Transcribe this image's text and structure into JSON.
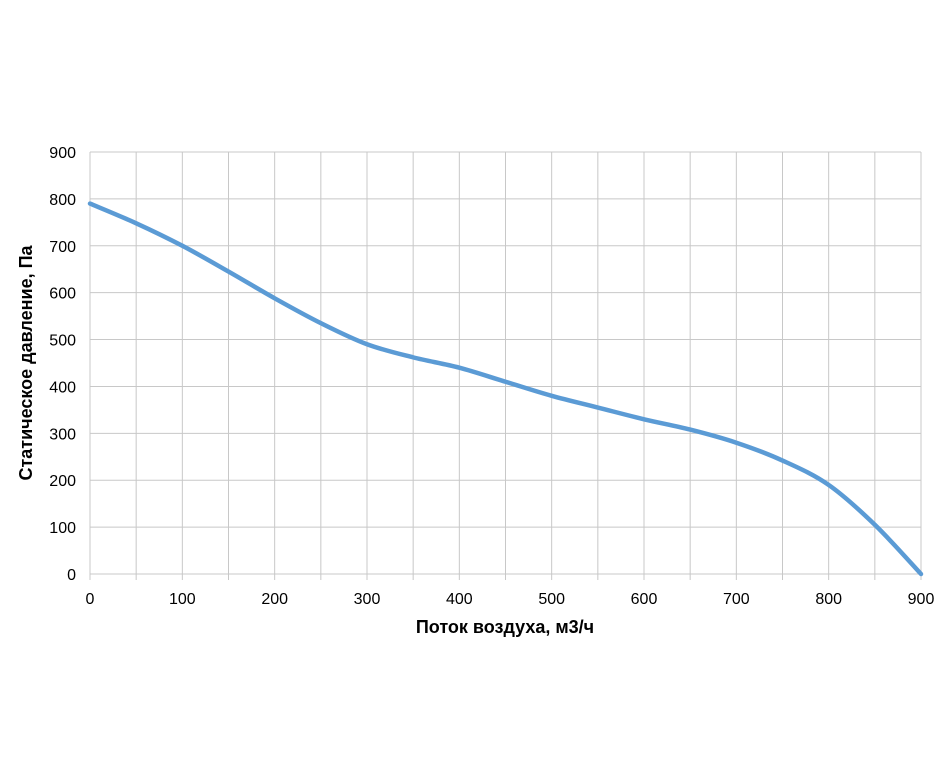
{
  "chart_data": {
    "type": "line",
    "title": "",
    "xlabel": "Поток воздуха, м3/ч",
    "ylabel": "Статическое давление, Па",
    "xlim": [
      0,
      900
    ],
    "ylim": [
      0,
      900
    ],
    "xticks": [
      0,
      100,
      200,
      300,
      400,
      500,
      600,
      700,
      800,
      900
    ],
    "yticks": [
      0,
      100,
      200,
      300,
      400,
      500,
      600,
      700,
      800,
      900
    ],
    "x_minor_step": 50,
    "grid": true,
    "legend": "none",
    "series": [
      {
        "color": "#5b9bd5",
        "points": [
          {
            "x": 0,
            "y": 790
          },
          {
            "x": 50,
            "y": 748
          },
          {
            "x": 100,
            "y": 700
          },
          {
            "x": 150,
            "y": 645
          },
          {
            "x": 200,
            "y": 588
          },
          {
            "x": 250,
            "y": 535
          },
          {
            "x": 300,
            "y": 490
          },
          {
            "x": 350,
            "y": 462
          },
          {
            "x": 400,
            "y": 440
          },
          {
            "x": 450,
            "y": 410
          },
          {
            "x": 500,
            "y": 380
          },
          {
            "x": 550,
            "y": 355
          },
          {
            "x": 600,
            "y": 330
          },
          {
            "x": 650,
            "y": 308
          },
          {
            "x": 700,
            "y": 280
          },
          {
            "x": 750,
            "y": 242
          },
          {
            "x": 800,
            "y": 190
          },
          {
            "x": 850,
            "y": 105
          },
          {
            "x": 900,
            "y": 0
          }
        ]
      }
    ]
  }
}
